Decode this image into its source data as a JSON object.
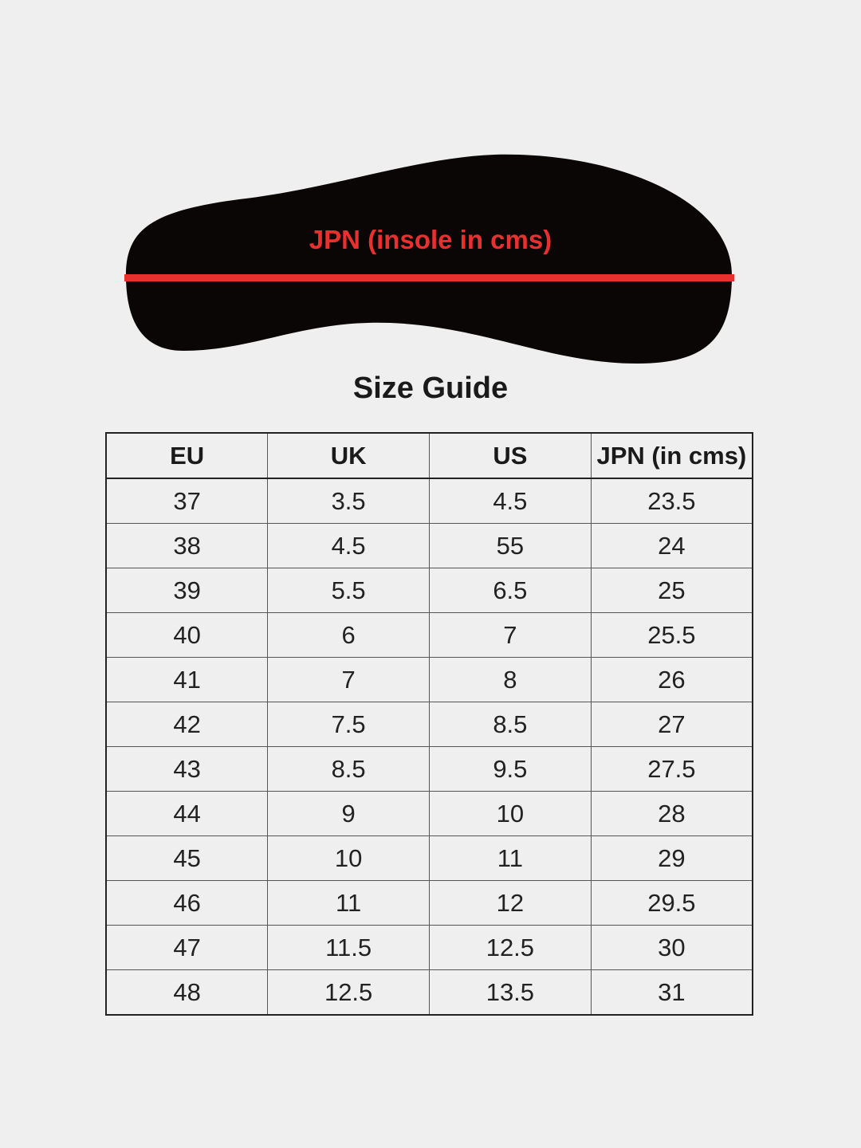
{
  "insole": {
    "label": "JPN (insole in cms)",
    "fill": "#0a0606",
    "line_color": "#e8312f"
  },
  "title": "Size Guide",
  "table": {
    "headers": [
      "EU",
      "UK",
      "US",
      "JPN (in cms)"
    ],
    "rows": [
      [
        "37",
        "3.5",
        "4.5",
        "23.5"
      ],
      [
        "38",
        "4.5",
        "55",
        "24"
      ],
      [
        "39",
        "5.5",
        "6.5",
        "25"
      ],
      [
        "40",
        "6",
        "7",
        "25.5"
      ],
      [
        "41",
        "7",
        "8",
        "26"
      ],
      [
        "42",
        "7.5",
        "8.5",
        "27"
      ],
      [
        "43",
        "8.5",
        "9.5",
        "27.5"
      ],
      [
        "44",
        "9",
        "10",
        "28"
      ],
      [
        "45",
        "10",
        "11",
        "29"
      ],
      [
        "46",
        "11",
        "12",
        "29.5"
      ],
      [
        "47",
        "11.5",
        "12.5",
        "30"
      ],
      [
        "48",
        "12.5",
        "13.5",
        "31"
      ]
    ]
  }
}
